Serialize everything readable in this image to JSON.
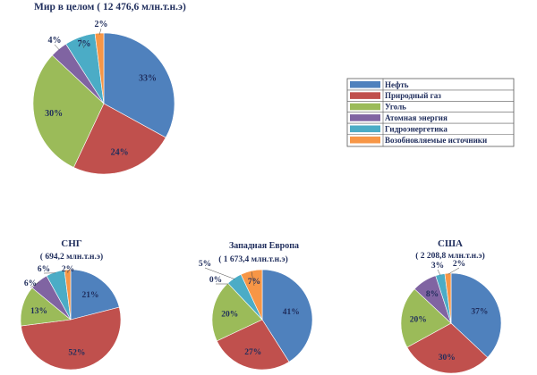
{
  "colors": {
    "oil": "#4f81bd",
    "gas": "#c0504d",
    "coal": "#9bbb59",
    "nuclear": "#8064a2",
    "hydro": "#4bacc6",
    "renewable": "#f79646"
  },
  "legend": {
    "entries": [
      {
        "key": "oil",
        "label": "Нефть"
      },
      {
        "key": "gas",
        "label": "Природный газ"
      },
      {
        "key": "coal",
        "label": "Уголь"
      },
      {
        "key": "nuclear",
        "label": "Атомная энергия"
      },
      {
        "key": "hydro",
        "label": "Гидроэнергетика"
      },
      {
        "key": "renewable",
        "label": "Возобновляемые источники"
      }
    ]
  },
  "chart_data": [
    {
      "type": "pie",
      "title": "Мир в целом ( 12 476,6 млн.т.н.э)",
      "subtitle": "",
      "categories": [
        "Нефть",
        "Природный газ",
        "Уголь",
        "Атомная энергия",
        "Гидроэнергетика",
        "Возобновляемые источники"
      ],
      "values": [
        33,
        24,
        30,
        4,
        7,
        2
      ],
      "labels": [
        "33%",
        "24%",
        "30%",
        "4%",
        "7%",
        "2%"
      ],
      "legend_position": "right"
    },
    {
      "type": "pie",
      "title": "СНГ",
      "subtitle": "( 694,2  млн.т.н.э)",
      "categories": [
        "Нефть",
        "Природный газ",
        "Уголь",
        "Атомная энергия",
        "Гидроэнергетика",
        "Возобновляемые источники"
      ],
      "values": [
        21,
        52,
        13,
        6,
        6,
        2
      ],
      "labels": [
        "21%",
        "52%",
        "13%",
        "6%",
        "6%",
        "2%"
      ]
    },
    {
      "type": "pie",
      "title": "Западная Европа",
      "subtitle": "( 1 673,4  млн.т.н.э)",
      "categories": [
        "Нефть",
        "Природный газ",
        "Уголь",
        "Атомная энергия",
        "Гидроэнергетика",
        "Возобновляемые источники"
      ],
      "values": [
        41,
        27,
        20,
        0,
        5,
        7
      ],
      "labels": [
        "41%",
        "27%",
        "20%",
        "0%",
        "5%",
        "7%"
      ]
    },
    {
      "type": "pie",
      "title": "США",
      "subtitle": "( 2 208,8 млн.т.н.э)",
      "categories": [
        "Нефть",
        "Природный газ",
        "Уголь",
        "Атомная энергия",
        "Гидроэнергетика",
        "Возобновляемые источники"
      ],
      "values": [
        37,
        30,
        20,
        8,
        3,
        2
      ],
      "labels": [
        "37%",
        "30%",
        "20%",
        "8%",
        "3%",
        "2%"
      ]
    }
  ]
}
